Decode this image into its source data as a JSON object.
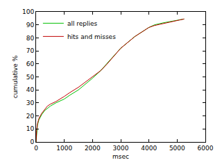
{
  "chart_data": {
    "type": "line",
    "x_label": "msec",
    "y_label": "cumulative %",
    "series": [
      {
        "name": "all replies",
        "color": "#00c000",
        "x": [
          0,
          20,
          50,
          100,
          200,
          300,
          400,
          500,
          700,
          1000,
          1200,
          1500,
          2000,
          2300,
          2500,
          3000,
          3500,
          4000,
          4200,
          4500,
          5000,
          5250
        ],
        "values": [
          0,
          8,
          13,
          17,
          21,
          24,
          26,
          27.5,
          30,
          33,
          36,
          40,
          49,
          55,
          60,
          72,
          81,
          88,
          90,
          91.5,
          93.5,
          94.5
        ]
      },
      {
        "name": "hits and misses",
        "color": "#c00000",
        "x": [
          0,
          20,
          50,
          100,
          200,
          300,
          400,
          500,
          700,
          1000,
          1200,
          1500,
          2000,
          2300,
          2500,
          3000,
          3500,
          4000,
          4200,
          4500,
          5000,
          5250
        ],
        "values": [
          0,
          9,
          14,
          18,
          22,
          25,
          27.5,
          29,
          31,
          35,
          38,
          42,
          50,
          55,
          59.5,
          72,
          81,
          88,
          89.5,
          91,
          93.5,
          94.5
        ]
      }
    ],
    "xlim": [
      0,
      6000
    ],
    "xticks": [
      0,
      1000,
      2000,
      3000,
      4000,
      5000,
      6000
    ],
    "ylim": [
      0,
      100
    ],
    "yticks": [
      0,
      10,
      20,
      30,
      40,
      50,
      60,
      70,
      80,
      90,
      100
    ],
    "grid": false,
    "legend": "upper left"
  }
}
